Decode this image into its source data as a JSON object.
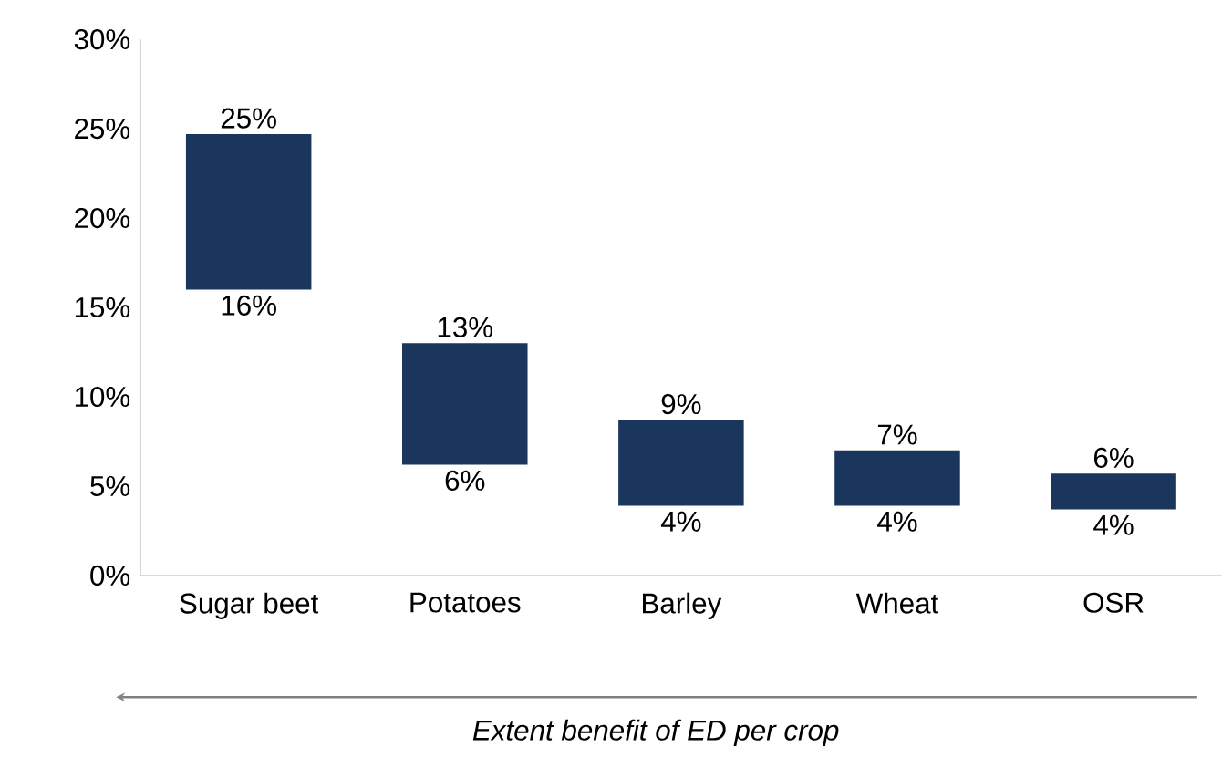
{
  "chart_data": {
    "type": "bar",
    "xlabel": "Extent benefit of ED per crop",
    "categories": [
      "Sugar beet",
      "Potatoes",
      "Barley",
      "Wheat",
      "OSR"
    ],
    "base": [
      16,
      6.2,
      3.9,
      3.9,
      3.7
    ],
    "values": [
      8.7,
      6.8,
      4.8,
      3.1,
      2.0
    ],
    "color": "#1b365d",
    "ylim": [
      0,
      30
    ],
    "yticks": [
      {
        "value": 0,
        "label": "0%"
      },
      {
        "value": 5,
        "label": "5%"
      },
      {
        "value": 10,
        "label": "10%"
      },
      {
        "value": 15,
        "label": "15%"
      },
      {
        "value": 20,
        "label": "20%"
      },
      {
        "value": 25,
        "label": "25%"
      },
      {
        "value": 30,
        "label": "30%"
      }
    ],
    "annotations": [
      {
        "text": "25%",
        "x": "Sugar beet",
        "y": 24.7
      },
      {
        "text": "16%",
        "x": "Sugar beet",
        "y": 16
      },
      {
        "text": "13%",
        "x": "Potatoes",
        "y": 13
      },
      {
        "text": "6%",
        "x": "Potatoes",
        "y": 6.2
      },
      {
        "text": "9%",
        "x": "Barley",
        "y": 8.7
      },
      {
        "text": "4%",
        "x": "Barley",
        "y": 3.9
      },
      {
        "text": "7%",
        "x": "Wheat",
        "y": 7
      },
      {
        "text": "4%",
        "x": "Wheat",
        "y": 3.9
      },
      {
        "text": "6%",
        "x": "OSR",
        "y": 5.7
      },
      {
        "text": "4%",
        "x": "OSR",
        "y": 3.7
      }
    ],
    "grid": false
  }
}
